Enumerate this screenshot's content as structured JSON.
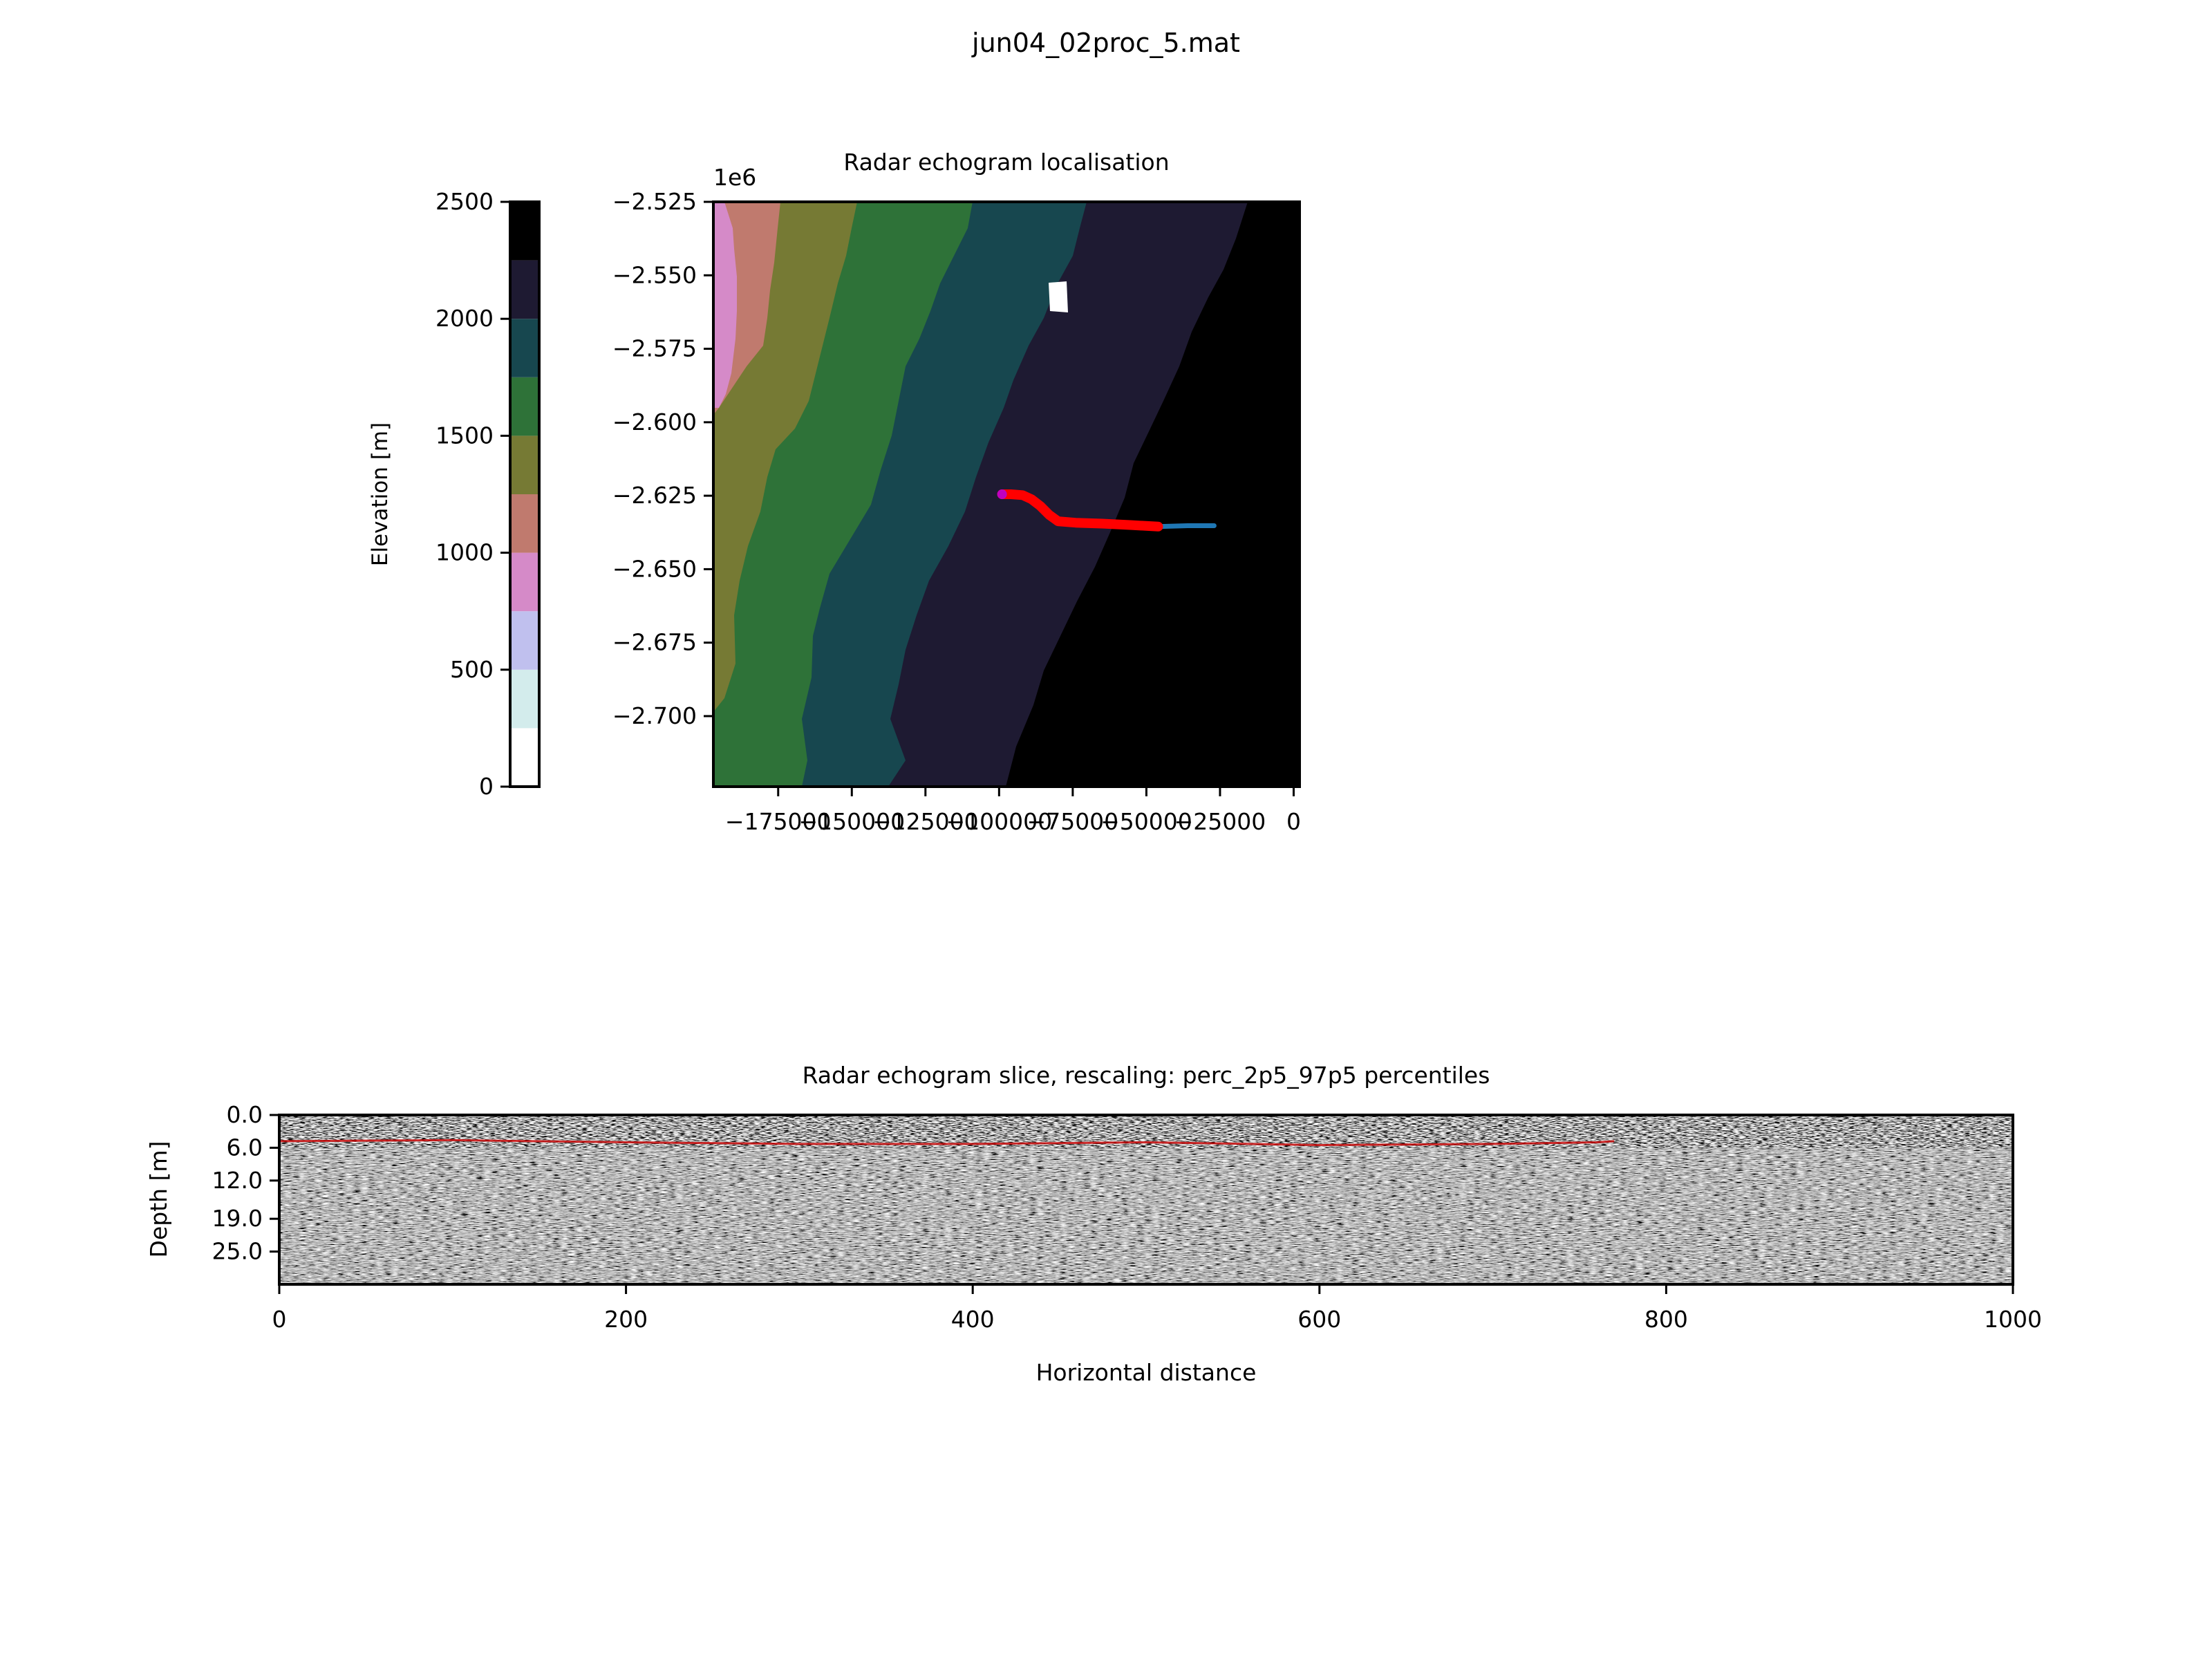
{
  "suptitle": "jun04_02proc_5.mat",
  "colorbar": {
    "label": "Elevation [m]",
    "ticks": [
      0,
      500,
      1000,
      1500,
      2000,
      2500
    ],
    "tick_labels": [
      "0",
      "500",
      "1000",
      "1500",
      "2000",
      "2500"
    ],
    "levels": [
      0,
      250,
      500,
      750,
      1000,
      1250,
      1500,
      1750,
      2000,
      2250,
      2500
    ],
    "colors": [
      "#ffffff",
      "#d3ecec",
      "#c0c0ee",
      "#d58ac8",
      "#c07a6e",
      "#767a34",
      "#2e7238",
      "#17474f",
      "#1e1a32",
      "#000000"
    ]
  },
  "map": {
    "title": "Radar echogram localisation",
    "offset_text": "1e6",
    "x_ticks": [
      -175000,
      -150000,
      -125000,
      -100000,
      -75000,
      -50000,
      -25000,
      0
    ],
    "x_tick_labels": [
      "−175000",
      "−150000",
      "−125000",
      "−100000",
      "−75000",
      "−50000",
      "−25000",
      "0"
    ],
    "y_ticks": [
      -2.525,
      -2.55,
      -2.575,
      -2.6,
      -2.625,
      -2.65,
      -2.675,
      -2.7
    ],
    "y_tick_labels": [
      "−2.525",
      "−2.550",
      "−2.575",
      "−2.600",
      "−2.625",
      "−2.650",
      "−2.675",
      "−2.700"
    ],
    "xlim": [
      -197000,
      2000
    ],
    "ylim": [
      -2.724,
      -2.525
    ]
  },
  "echogram": {
    "title": "Radar echogram slice, rescaling: perc_2p5_97p5 percentiles",
    "xlabel": "Horizontal distance",
    "ylabel": "Depth [m]",
    "x_ticks": [
      0,
      200,
      400,
      600,
      800,
      1000
    ],
    "x_tick_labels": [
      "0",
      "200",
      "400",
      "600",
      "800",
      "1000"
    ],
    "y_ticks": [
      0,
      6,
      12,
      19,
      25
    ],
    "y_tick_labels": [
      "0.0",
      "6.0",
      "12.0",
      "19.0",
      "25.0"
    ],
    "xlim": [
      0,
      1000
    ],
    "ylim": [
      31,
      0
    ]
  },
  "chart_data": [
    {
      "type": "heatmap",
      "title": "Radar echogram localisation",
      "colorbar_label": "Elevation [m]",
      "elevation_bands_m": [
        {
          "range": [
            750,
            1000
          ],
          "color": "#d58ac8"
        },
        {
          "range": [
            1000,
            1250
          ],
          "color": "#c07a6e"
        },
        {
          "range": [
            1250,
            1500
          ],
          "color": "#767a34"
        },
        {
          "range": [
            1500,
            1750
          ],
          "color": "#2e7238"
        },
        {
          "range": [
            1750,
            2000
          ],
          "color": "#17474f"
        },
        {
          "range": [
            2000,
            2250
          ],
          "color": "#1e1a32"
        },
        {
          "range": [
            2250,
            2500
          ],
          "color": "#000000"
        }
      ],
      "band_boundaries": [
        {
          "x_top": -188000,
          "x_bottom": -195000
        },
        {
          "x_top": -178000,
          "x_bottom": -196000
        },
        {
          "x_top": -154000,
          "x_bottom": -188000
        },
        {
          "x_top": -115000,
          "x_bottom": -166000
        },
        {
          "x_top": -81000,
          "x_bottom": -136000
        },
        {
          "x_top": -19000,
          "x_bottom": -96000
        }
      ],
      "track_radar": {
        "color": "#ff0000",
        "x": [
          -99000,
          -96000,
          -92000,
          -89000,
          -86000,
          -83000,
          -80000,
          -74000,
          -65000,
          -55000,
          -46000
        ],
        "y": [
          -2.6245,
          -2.6245,
          -2.6248,
          -2.6262,
          -2.6285,
          -2.6315,
          -2.6337,
          -2.6342,
          -2.6345,
          -2.635,
          -2.6355
        ]
      },
      "track_line": {
        "color": "#1f77b4",
        "x": [
          -46000,
          -36000,
          -27000
        ],
        "y": [
          -2.6355,
          -2.6352,
          -2.6352
        ]
      },
      "start_point": {
        "x": -99000,
        "y": -2.6245,
        "color": "#c000c0"
      },
      "no_data_patch": {
        "x": [
          -83000,
          -76000
        ],
        "y": [
          -2.5535,
          -2.5635
        ],
        "color": "#ffffff"
      }
    },
    {
      "type": "heatmap",
      "title": "Radar echogram slice, rescaling: perc_2p5_97p5 percentiles",
      "xlabel": "Horizontal distance",
      "ylabel": "Depth [m]",
      "colormap": "gray",
      "picked_layer": {
        "color": "#cc0000",
        "x": [
          0,
          100,
          200,
          300,
          400,
          500,
          600,
          700,
          760,
          770
        ],
        "depth_m": [
          4.8,
          4.6,
          5.0,
          5.3,
          5.3,
          5.0,
          5.5,
          5.3,
          5.0,
          4.8
        ]
      }
    }
  ]
}
